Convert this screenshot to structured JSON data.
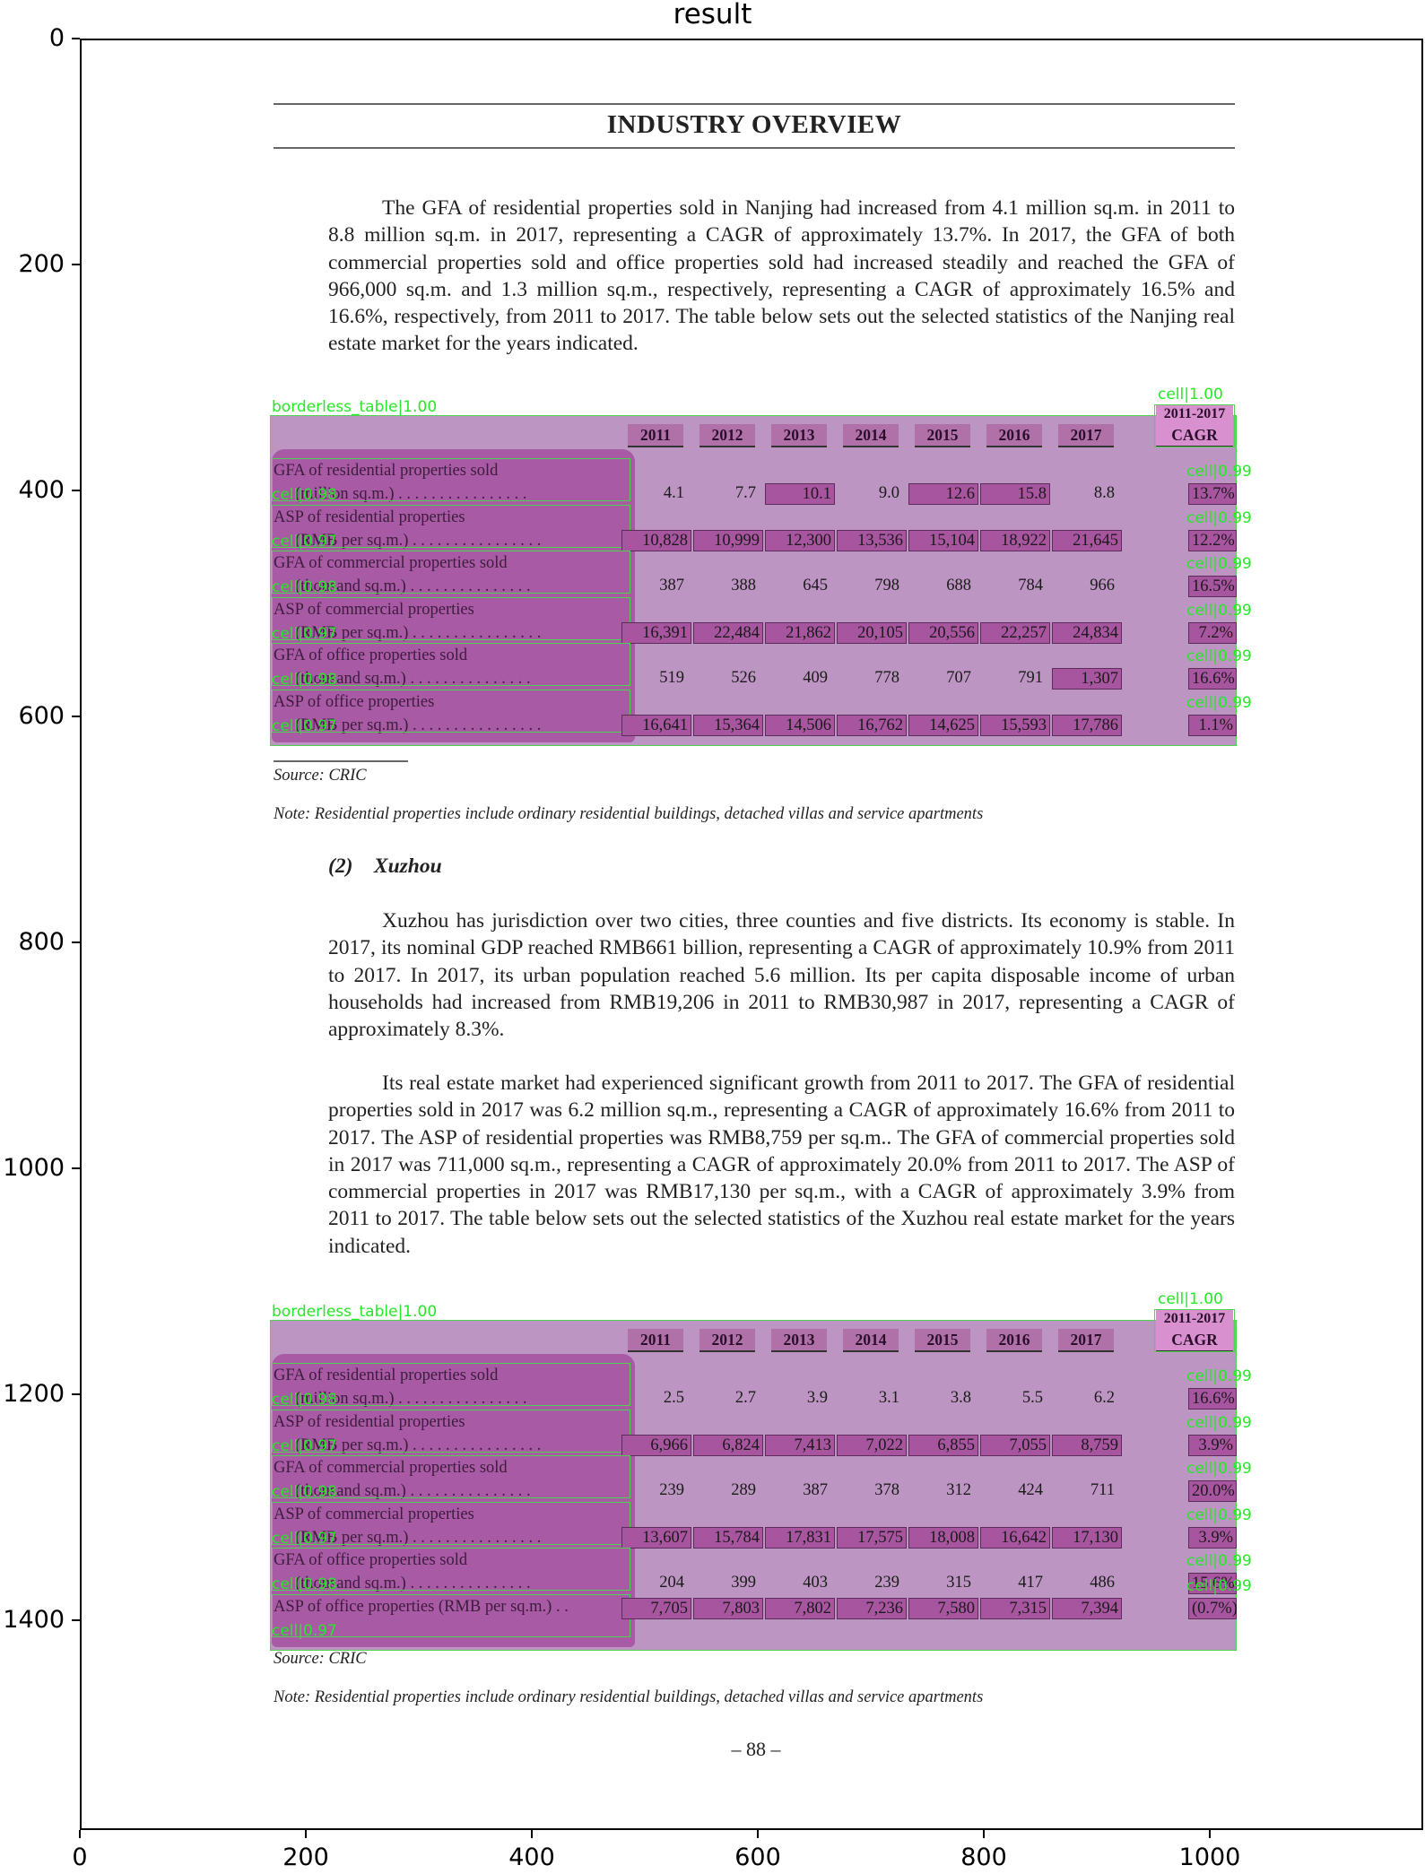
{
  "plot": {
    "title": "result",
    "y_ticks": [
      "0",
      "200",
      "400",
      "600",
      "800",
      "1000",
      "1200",
      "1400"
    ],
    "x_ticks": [
      "0",
      "200",
      "400",
      "600",
      "800",
      "1000"
    ]
  },
  "page": {
    "heading": "INDUSTRY OVERVIEW",
    "intro_paragraph": "The GFA of residential properties sold in Nanjing had increased from 4.1 million sq.m. in 2011 to 8.8 million sq.m. in 2017, representing a CAGR of approximately 13.7%. In 2017, the GFA of both commercial properties sold and office properties sold had increased steadily and reached the GFA of 966,000 sq.m. and 1.3 million sq.m., respectively, representing a CAGR of approximately 16.5% and 16.6%, respectively, from 2011 to 2017. The table below sets out the selected statistics of the Nanjing real estate market for the years indicated.",
    "source_1": "Source: CRIC",
    "note_1": "Note:  Residential properties include ordinary residential buildings, detached villas and service apartments",
    "subheading": "(2)    Xuzhou",
    "xuzhou_para_1": "Xuzhou has jurisdiction over two cities, three counties and five districts. Its economy is stable. In 2017, its nominal GDP reached RMB661 billion, representing a CAGR of approximately 10.9% from 2011 to 2017. In 2017, its urban population reached 5.6 million. Its per capita disposable income of urban households had increased from RMB19,206 in 2011 to RMB30,987 in 2017, representing a CAGR of approximately 8.3%.",
    "xuzhou_para_2": "Its real estate market had experienced significant growth from 2011 to 2017. The GFA of residential properties sold in 2017 was 6.2 million sq.m., representing a CAGR of approximately 16.6% from 2011 to 2017. The ASP of residential properties was RMB8,759 per sq.m.. The GFA of commercial properties sold in 2017 was 711,000 sq.m., representing a CAGR of approximately 20.0% from 2011 to 2017. The ASP of commercial properties in 2017 was RMB17,130 per sq.m., with a CAGR of approximately 3.9% from 2011 to 2017. The table below sets out the selected statistics of the Xuzhou real estate market for the years indicated.",
    "source_2": "Source: CRIC",
    "note_2": "Note:  Residential properties include ordinary residential buildings, detached villas and service apartments",
    "page_number": "– 88 –"
  },
  "tables": [
    {
      "headers": [
        "2011",
        "2012",
        "2013",
        "2014",
        "2015",
        "2016",
        "2017"
      ],
      "cagr_header": [
        "2011-2017",
        "CAGR"
      ],
      "rows": [
        {
          "label1": "GFA of residential properties sold",
          "label2": "(million sq.m.) . . . . . . . . . . . . . . . .",
          "values": [
            "4.1",
            "7.7",
            "10.1",
            "9.0",
            "12.6",
            "15.8",
            "8.8"
          ],
          "cagr": "13.7%"
        },
        {
          "label1": "ASP of residential properties",
          "label2": "(RMB per sq.m.) . . . . . . . . . . . . . . . .",
          "values": [
            "10,828",
            "10,999",
            "12,300",
            "13,536",
            "15,104",
            "18,922",
            "21,645"
          ],
          "cagr": "12.2%"
        },
        {
          "label1": "GFA of commercial properties sold",
          "label2": "(thousand sq.m.) . . . . . . . . . . . . . . .",
          "values": [
            "387",
            "388",
            "645",
            "798",
            "688",
            "784",
            "966"
          ],
          "cagr": "16.5%"
        },
        {
          "label1": "ASP of commercial properties",
          "label2": "(RMB per sq.m.) . . . . . . . . . . . . . . . .",
          "values": [
            "16,391",
            "22,484",
            "21,862",
            "20,105",
            "20,556",
            "22,257",
            "24,834"
          ],
          "cagr": "7.2%"
        },
        {
          "label1": "GFA of office properties sold",
          "label2": "(thousand sq.m.) . . . . . . . . . . . . . . .",
          "values": [
            "519",
            "526",
            "409",
            "778",
            "707",
            "791",
            "1,307"
          ],
          "cagr": "16.6%"
        },
        {
          "label1": "ASP of office properties",
          "label2": "(RMB per sq.m.) . . . . . . . . . . . . . . . .",
          "values": [
            "16,641",
            "15,364",
            "14,506",
            "16,762",
            "14,625",
            "15,593",
            "17,786"
          ],
          "cagr": "1.1%"
        }
      ]
    },
    {
      "headers": [
        "2011",
        "2012",
        "2013",
        "2014",
        "2015",
        "2016",
        "2017"
      ],
      "cagr_header": [
        "2011-2017",
        "CAGR"
      ],
      "rows": [
        {
          "label1": "GFA of residential properties sold",
          "label2": "(million sq.m.) . . . . . . . . . . . . . . . .",
          "values": [
            "2.5",
            "2.7",
            "3.9",
            "3.1",
            "3.8",
            "5.5",
            "6.2"
          ],
          "cagr": "16.6%"
        },
        {
          "label1": "ASP of residential properties",
          "label2": "(RMB per sq.m.) . . . . . . . . . . . . . . . .",
          "values": [
            "6,966",
            "6,824",
            "7,413",
            "7,022",
            "6,855",
            "7,055",
            "8,759"
          ],
          "cagr": "3.9%"
        },
        {
          "label1": "GFA of commercial properties sold",
          "label2": "(thousand sq.m.) . . . . . . . . . . . . . . .",
          "values": [
            "239",
            "289",
            "387",
            "378",
            "312",
            "424",
            "711"
          ],
          "cagr": "20.0%"
        },
        {
          "label1": "ASP of commercial properties",
          "label2": "(RMB per sq.m.) . . . . . . . . . . . . . . . .",
          "values": [
            "13,607",
            "15,784",
            "17,831",
            "17,575",
            "18,008",
            "16,642",
            "17,130"
          ],
          "cagr": "3.9%"
        },
        {
          "label1": "GFA of office properties sold",
          "label2": "(thousand sq.m.) . . . . . . . . . . . . . . .",
          "values": [
            "204",
            "399",
            "403",
            "239",
            "315",
            "417",
            "486"
          ],
          "cagr": "15.6%"
        },
        {
          "label1": "ASP of office properties (RMB per sq.m.) . .",
          "label2": "",
          "values": [
            "7,705",
            "7,803",
            "7,802",
            "7,236",
            "7,580",
            "7,315",
            "7,394"
          ],
          "cagr": "(0.7%)"
        }
      ]
    }
  ],
  "detections": {
    "table_label": "borderless_table|1.00",
    "cell_labels": [
      "cell|1.00",
      "cell|0.99",
      "cell|0.98",
      "cell|0.97",
      "cell|0.96"
    ]
  }
}
